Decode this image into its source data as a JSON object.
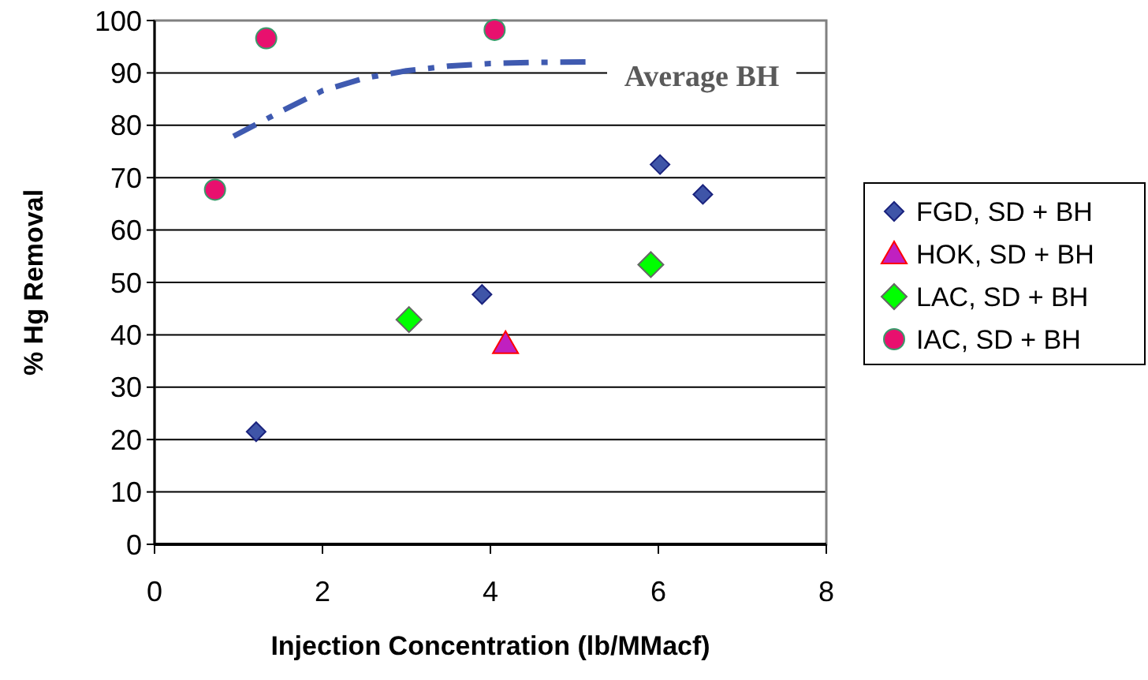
{
  "chart_data": {
    "type": "scatter",
    "xlabel": "Injection Concentration (lb/MMacf)",
    "ylabel": "% Hg Removal",
    "xlim": [
      0,
      8
    ],
    "xticks": [
      0,
      2,
      4,
      6,
      8
    ],
    "ylim": [
      0,
      100
    ],
    "yticks": [
      0,
      10,
      20,
      30,
      40,
      50,
      60,
      70,
      80,
      90,
      100
    ],
    "grid": "y",
    "legend": "right",
    "series": [
      {
        "name": "FGD, SD + BH",
        "color": "#3f55a8",
        "marker": "diamond",
        "x": [
          1.21,
          3.9,
          6.02,
          6.53
        ],
        "values": [
          21.5,
          47.7,
          72.5,
          66.8
        ]
      },
      {
        "name": "HOK, SD + BH",
        "color": "#c020c0",
        "marker": "triangle",
        "x": [
          4.18
        ],
        "values": [
          38.3
        ]
      },
      {
        "name": "LAC, SD + BH",
        "color": "#00ff00",
        "marker": "diamond",
        "x": [
          3.03,
          5.91
        ],
        "values": [
          42.9,
          53.4
        ]
      },
      {
        "name": "IAC, SD + BH",
        "color": "#e8106e",
        "marker": "circle",
        "x": [
          0.72,
          1.33,
          4.05
        ],
        "values": [
          67.7,
          96.6,
          98.2
        ]
      },
      {
        "type": "line",
        "color": "#3f5ab0",
        "line_style": "dashed",
        "x": [
          0.94,
          1.5,
          2,
          2.5,
          3,
          3.5,
          4,
          4.5,
          5.2
        ],
        "values": [
          77.9,
          82.6,
          86.6,
          89,
          90.4,
          91.3,
          91.8,
          92,
          92.1
        ]
      }
    ],
    "annotations": [
      "Average BH"
    ]
  }
}
